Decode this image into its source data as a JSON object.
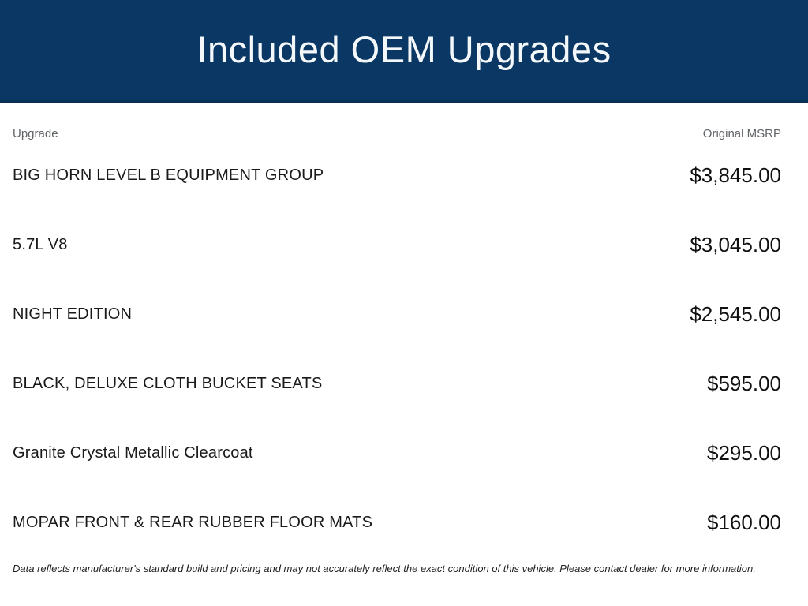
{
  "banner": {
    "title": "Included OEM Upgrades",
    "background_color": "#0a3763",
    "edge_color": "#082f54",
    "text_color": "#f4f8fb"
  },
  "table": {
    "columns": [
      {
        "label": "Upgrade"
      },
      {
        "label": "Original MSRP"
      }
    ],
    "rows": [
      {
        "upgrade": "BIG HORN LEVEL B EQUIPMENT GROUP",
        "msrp": "$3,845.00"
      },
      {
        "upgrade": "5.7L V8",
        "msrp": "$3,045.00"
      },
      {
        "upgrade": "NIGHT EDITION",
        "msrp": "$2,545.00"
      },
      {
        "upgrade": "BLACK, DELUXE CLOTH BUCKET SEATS",
        "msrp": "$595.00"
      },
      {
        "upgrade": "Granite Crystal Metallic Clearcoat",
        "msrp": "$295.00"
      },
      {
        "upgrade": "MOPAR FRONT & REAR RUBBER FLOOR MATS",
        "msrp": "$160.00"
      }
    ]
  },
  "disclaimer": "Data reflects manufacturer's standard build and pricing and may not accurately reflect the exact condition of this vehicle. Please contact dealer for more information."
}
